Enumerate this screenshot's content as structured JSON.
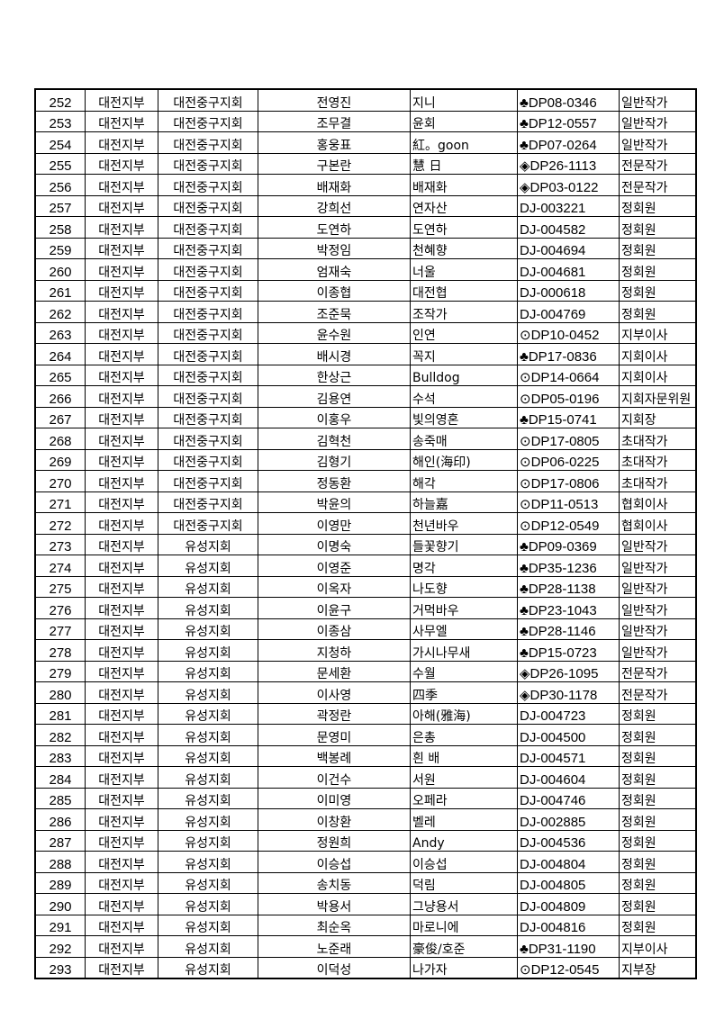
{
  "table": {
    "rows": [
      [
        "252",
        "대전지부",
        "대전중구지회",
        "전영진",
        "지니",
        "♣DP08-0346",
        "일반작가"
      ],
      [
        "253",
        "대전지부",
        "대전중구지회",
        "조무결",
        "윤회",
        "♣DP12-0557",
        "일반작가"
      ],
      [
        "254",
        "대전지부",
        "대전중구지회",
        "홍웅표",
        "紅。goon",
        "♣DP07-0264",
        "일반작가"
      ],
      [
        "255",
        "대전지부",
        "대전중구지회",
        "구본란",
        "慧 日",
        "◈DP26-1113",
        "전문작가"
      ],
      [
        "256",
        "대전지부",
        "대전중구지회",
        "배재화",
        "배재화",
        "◈DP03-0122",
        "전문작가"
      ],
      [
        "257",
        "대전지부",
        "대전중구지회",
        "강희선",
        "연자산",
        "DJ-003221",
        "정회원"
      ],
      [
        "258",
        "대전지부",
        "대전중구지회",
        "도연하",
        "도연하",
        "DJ-004582",
        "정회원"
      ],
      [
        "259",
        "대전지부",
        "대전중구지회",
        "박정임",
        "천혜향",
        "DJ-004694",
        "정회원"
      ],
      [
        "260",
        "대전지부",
        "대전중구지회",
        "엄재숙",
        "너울",
        "DJ-004681",
        "정회원"
      ],
      [
        "261",
        "대전지부",
        "대전중구지회",
        "이종협",
        "대전협",
        "DJ-000618",
        "정회원"
      ],
      [
        "262",
        "대전지부",
        "대전중구지회",
        "조준묵",
        "조작가",
        "DJ-004769",
        "정회원"
      ],
      [
        "263",
        "대전지부",
        "대전중구지회",
        "윤수원",
        "인연",
        "⊙DP10-0452",
        "지부이사"
      ],
      [
        "264",
        "대전지부",
        "대전중구지회",
        "배시경",
        "꼭지",
        "♣DP17-0836",
        "지회이사"
      ],
      [
        "265",
        "대전지부",
        "대전중구지회",
        "한상근",
        "Bulldog",
        "⊙DP14-0664",
        "지회이사"
      ],
      [
        "266",
        "대전지부",
        "대전중구지회",
        "김용연",
        "수석",
        "⊙DP05-0196",
        "지회자문위원"
      ],
      [
        "267",
        "대전지부",
        "대전중구지회",
        "이홍우",
        "빛의영혼",
        "♣DP15-0741",
        "지회장"
      ],
      [
        "268",
        "대전지부",
        "대전중구지회",
        "김혁천",
        "송죽매",
        "⊙DP17-0805",
        "초대작가"
      ],
      [
        "269",
        "대전지부",
        "대전중구지회",
        "김형기",
        "해인(海印)",
        "⊙DP06-0225",
        "초대작가"
      ],
      [
        "270",
        "대전지부",
        "대전중구지회",
        "정동환",
        "해각",
        "⊙DP17-0806",
        "초대작가"
      ],
      [
        "271",
        "대전지부",
        "대전중구지회",
        "박윤의",
        "하늘嘉",
        "⊙DP11-0513",
        "협회이사"
      ],
      [
        "272",
        "대전지부",
        "대전중구지회",
        "이영만",
        "천년바우",
        "⊙DP12-0549",
        "협회이사"
      ],
      [
        "273",
        "대전지부",
        "유성지회",
        "이명숙",
        "들꽃향기",
        "♣DP09-0369",
        "일반작가"
      ],
      [
        "274",
        "대전지부",
        "유성지회",
        "이영준",
        "명각",
        "♣DP35-1236",
        "일반작가"
      ],
      [
        "275",
        "대전지부",
        "유성지회",
        "이옥자",
        "나도향",
        "♣DP28-1138",
        "일반작가"
      ],
      [
        "276",
        "대전지부",
        "유성지회",
        "이윤구",
        "거먹바우",
        "♣DP23-1043",
        "일반작가"
      ],
      [
        "277",
        "대전지부",
        "유성지회",
        "이종삼",
        "사무엘",
        "♣DP28-1146",
        "일반작가"
      ],
      [
        "278",
        "대전지부",
        "유성지회",
        "지청하",
        "가시나무새",
        "♣DP15-0723",
        "일반작가"
      ],
      [
        "279",
        "대전지부",
        "유성지회",
        "문세환",
        "수월",
        "◈DP26-1095",
        "전문작가"
      ],
      [
        "280",
        "대전지부",
        "유성지회",
        "이사영",
        "四季",
        "◈DP30-1178",
        "전문작가"
      ],
      [
        "281",
        "대전지부",
        "유성지회",
        "곽정란",
        "아해(雅海)",
        "DJ-004723",
        "정회원"
      ],
      [
        "282",
        "대전지부",
        "유성지회",
        "문영미",
        "은총",
        "DJ-004500",
        "정회원"
      ],
      [
        "283",
        "대전지부",
        "유성지회",
        "백봉례",
        "흰 배",
        "DJ-004571",
        "정회원"
      ],
      [
        "284",
        "대전지부",
        "유성지회",
        "이건수",
        "서원",
        "DJ-004604",
        "정회원"
      ],
      [
        "285",
        "대전지부",
        "유성지회",
        "이미영",
        "오페라",
        "DJ-004746",
        "정회원"
      ],
      [
        "286",
        "대전지부",
        "유성지회",
        "이창환",
        "벨레",
        "DJ-002885",
        "정회원"
      ],
      [
        "287",
        "대전지부",
        "유성지회",
        "정원희",
        "Andy",
        "DJ-004536",
        "정회원"
      ],
      [
        "288",
        "대전지부",
        "유성지회",
        "이승섭",
        "이승섭",
        "DJ-004804",
        "정회원"
      ],
      [
        "289",
        "대전지부",
        "유성지회",
        "송치동",
        "덕림",
        "DJ-004805",
        "정회원"
      ],
      [
        "290",
        "대전지부",
        "유성지회",
        "박용서",
        "그냥용서",
        "DJ-004809",
        "정회원"
      ],
      [
        "291",
        "대전지부",
        "유성지회",
        "최순옥",
        "마로니에",
        "DJ-004816",
        "정회원"
      ],
      [
        "292",
        "대전지부",
        "유성지회",
        "노준래",
        "豪俊/호준",
        "♣DP31-1190",
        "지부이사"
      ],
      [
        "293",
        "대전지부",
        "유성지회",
        "이덕성",
        "나가자",
        "⊙DP12-0545",
        "지부장"
      ]
    ]
  }
}
